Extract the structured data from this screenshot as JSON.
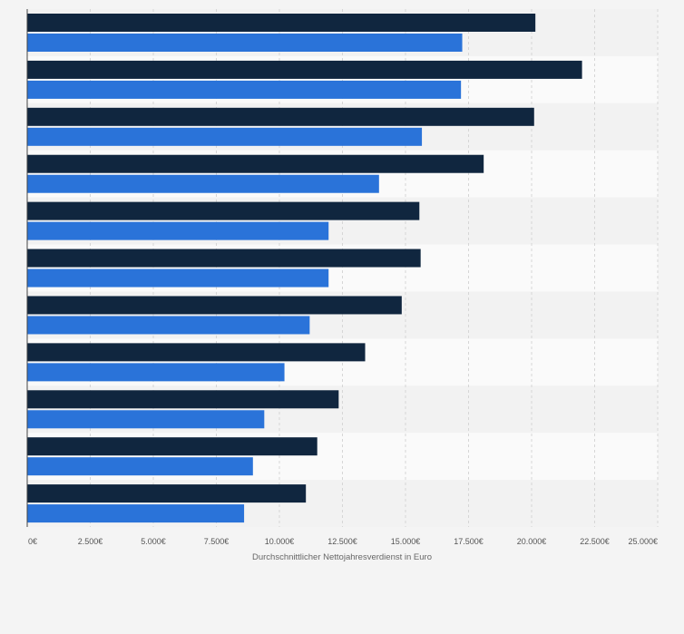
{
  "chart_data": {
    "type": "bar",
    "orientation": "horizontal",
    "title": "",
    "xlabel": "Durchschnittlicher Nettojahresverdienst in Euro",
    "ylabel": "",
    "xlim": [
      0,
      25000
    ],
    "ticks": [
      {
        "value": 0,
        "label": "0€"
      },
      {
        "value": 2500,
        "label": "2.500€"
      },
      {
        "value": 5000,
        "label": "5.000€"
      },
      {
        "value": 7500,
        "label": "7.500€"
      },
      {
        "value": 10000,
        "label": "10.000€"
      },
      {
        "value": 12500,
        "label": "12.500€"
      },
      {
        "value": 15000,
        "label": "15.000€"
      },
      {
        "value": 17500,
        "label": "17.500€"
      },
      {
        "value": 20000,
        "label": "20.000€"
      },
      {
        "value": 22500,
        "label": "22.500€"
      },
      {
        "value": 25000,
        "label": "25.000€"
      }
    ],
    "categories": [
      "",
      "",
      "",
      "",
      "",
      "",
      "",
      "",
      "",
      "",
      ""
    ],
    "series": [
      {
        "color": "#10263f",
        "values": [
          20150,
          22000,
          20100,
          18100,
          15550,
          15600,
          14850,
          13400,
          12350,
          11500,
          11050
        ]
      },
      {
        "color": "#2a73d9",
        "values": [
          17250,
          17200,
          15650,
          13950,
          11950,
          11950,
          11200,
          10200,
          9400,
          8950,
          8600
        ]
      }
    ],
    "grid": true,
    "legend": "none"
  }
}
